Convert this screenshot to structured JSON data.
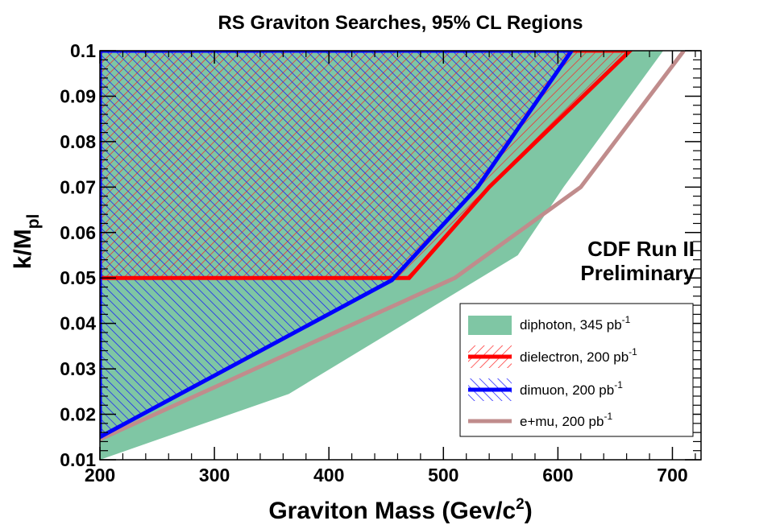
{
  "chart_data": {
    "type": "area",
    "title": "RS Graviton Searches, 95% CL Regions",
    "xlabel": {
      "main": "Graviton Mass (Gev/c",
      "sup": "2",
      "close": ")"
    },
    "ylabel": {
      "main": "k/M",
      "sub": "pl"
    },
    "xlim": [
      200,
      725
    ],
    "ylim": [
      0.01,
      0.1
    ],
    "xticks": [
      200,
      300,
      400,
      500,
      600,
      700
    ],
    "xtick_labels": [
      "200",
      "300",
      "400",
      "500",
      "600",
      "700"
    ],
    "yticks": [
      0.01,
      0.02,
      0.03,
      0.04,
      0.05,
      0.06,
      0.07,
      0.08,
      0.09,
      0.1
    ],
    "ytick_labels": [
      "0.01",
      "0.02",
      "0.03",
      "0.04",
      "0.05",
      "0.06",
      "0.07",
      "0.08",
      "0.09",
      "0.1"
    ],
    "annotation": [
      "CDF Run II",
      "Preliminary"
    ],
    "series": [
      {
        "name": "diphoton",
        "lumi": "345",
        "color": "#7fc6a4",
        "style": "filled",
        "region": [
          [
            200,
            0.01
          ],
          [
            365,
            0.0245
          ],
          [
            565,
            0.055
          ],
          [
            605,
            0.07
          ],
          [
            692,
            0.1
          ],
          [
            200,
            0.1
          ]
        ]
      },
      {
        "name": "dielectron",
        "lumi": "200",
        "color": "#ff0000",
        "style": "hatched",
        "boundary": [
          [
            200,
            0.05
          ],
          [
            470,
            0.05
          ],
          [
            540,
            0.07
          ],
          [
            663,
            0.1
          ]
        ]
      },
      {
        "name": "dimuon",
        "lumi": "200",
        "color": "#0000ff",
        "style": "hatched",
        "boundary": [
          [
            200,
            0.015
          ],
          [
            455,
            0.0495
          ],
          [
            530,
            0.07
          ],
          [
            612,
            0.1
          ]
        ]
      },
      {
        "name": "e+mu",
        "lumi": "200",
        "color": "#c08c8c",
        "style": "line",
        "boundary": [
          [
            200,
            0.0145
          ],
          [
            510,
            0.05
          ],
          [
            620,
            0.07
          ],
          [
            710,
            0.1
          ]
        ]
      }
    ],
    "legend": {
      "position": "bottom-right",
      "unit": "pb",
      "exponent": "-1",
      "entries": [
        {
          "label": "diphoton, 345 pb"
        },
        {
          "label": "dielectron, 200 pb"
        },
        {
          "label": "dimuon, 200 pb"
        },
        {
          "label": "e+mu, 200 pb"
        }
      ]
    }
  }
}
